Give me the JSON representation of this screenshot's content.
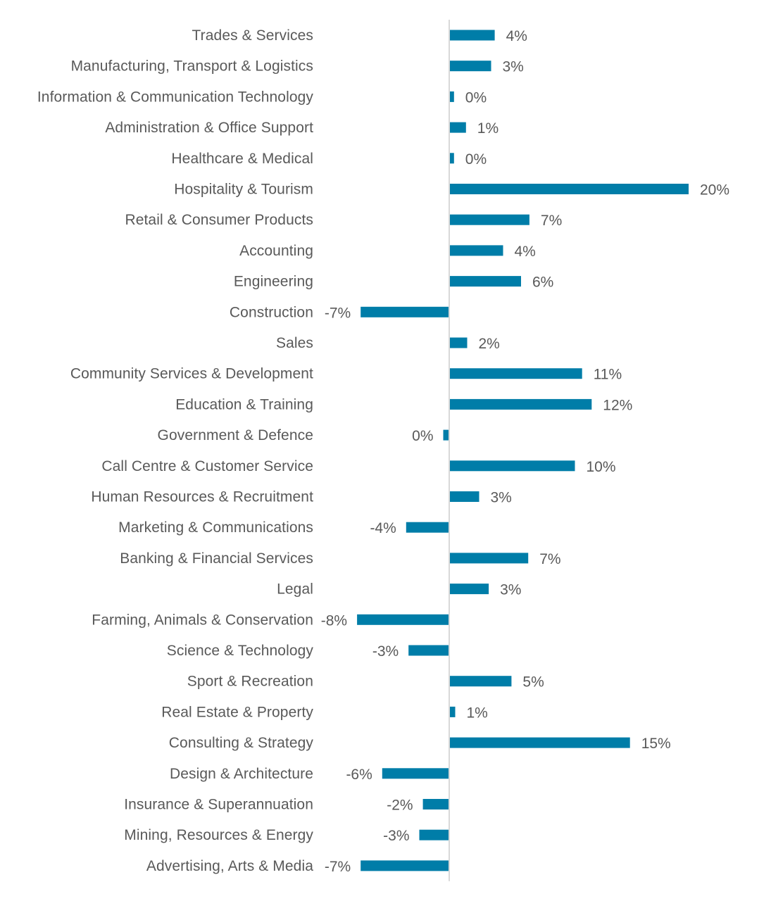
{
  "chart_data": {
    "type": "bar",
    "orientation": "horizontal",
    "title": "",
    "xlabel": "",
    "ylabel": "",
    "grid": false,
    "legend": "none",
    "bar_color": "#007da8",
    "xlim": [
      -8,
      20
    ],
    "categories": [
      "Trades & Services",
      "Manufacturing, Transport & Logistics",
      "Information & Communication Technology",
      "Administration & Office Support",
      "Healthcare & Medical",
      "Hospitality & Tourism",
      "Retail & Consumer Products",
      "Accounting",
      "Engineering",
      "Construction",
      "Sales",
      "Community Services & Development",
      "Education & Training",
      "Government & Defence",
      "Call Centre & Customer Service",
      "Human Resources & Recruitment",
      "Marketing & Communications",
      "Banking & Financial Services",
      "Legal",
      "Farming, Animals & Conservation",
      "Science & Technology",
      "Sport & Recreation",
      "Real Estate & Property",
      "Consulting & Strategy",
      "Design & Architecture",
      "Insurance & Superannuation",
      "Mining, Resources & Energy",
      "Advertising, Arts & Media"
    ],
    "values": [
      3.8,
      3.5,
      0.4,
      1.4,
      0.4,
      20.0,
      6.7,
      4.5,
      6.0,
      -7.4,
      1.5,
      11.1,
      11.9,
      -0.5,
      10.5,
      2.5,
      -3.6,
      6.6,
      3.3,
      -7.7,
      -3.4,
      5.2,
      0.5,
      15.1,
      -5.6,
      -2.2,
      -2.5,
      -7.4
    ],
    "data_labels": [
      "4%",
      "3%",
      "0%",
      "1%",
      "0%",
      "20%",
      "7%",
      "4%",
      "6%",
      "-7%",
      "2%",
      "11%",
      "12%",
      "0%",
      "10%",
      "3%",
      "-4%",
      "7%",
      "3%",
      "-8%",
      "-3%",
      "5%",
      "1%",
      "15%",
      "-6%",
      "-2%",
      "-3%",
      "-7%"
    ]
  }
}
